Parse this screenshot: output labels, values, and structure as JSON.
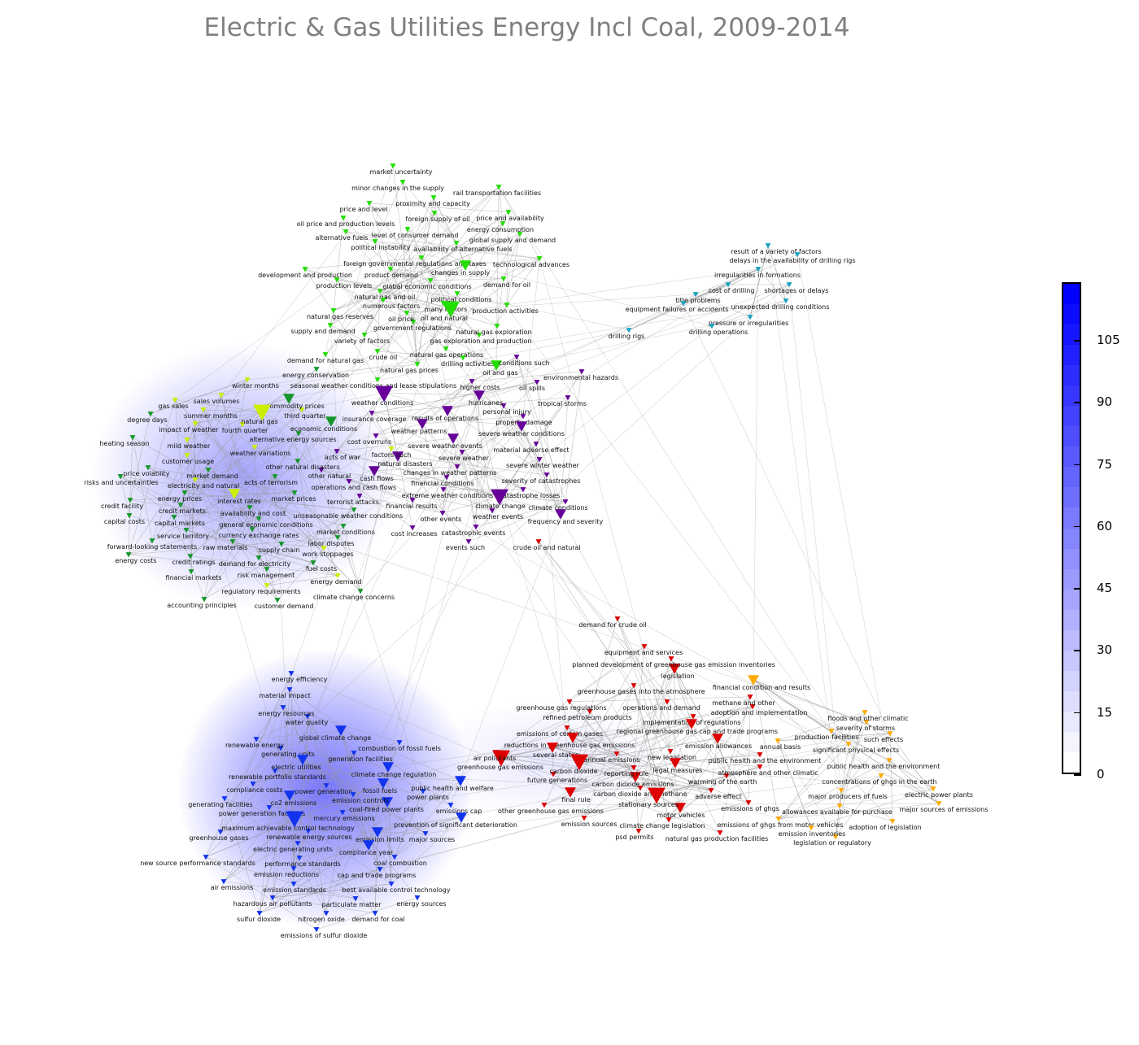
{
  "title": "Electric & Gas Utilities Energy Incl Coal, 2009-2014",
  "colorbar": {
    "ticks": [
      "0",
      "15",
      "30",
      "45",
      "60",
      "75",
      "90",
      "105"
    ],
    "tick_values": [
      0,
      15,
      30,
      45,
      60,
      75,
      90,
      105
    ],
    "range": [
      0,
      119
    ],
    "low_color": "#ffffff",
    "high_color": "#0000ff"
  },
  "clusters": [
    {
      "id": "oil",
      "color": "#22dd00",
      "nodes": [
        "market uncertainty",
        "minor changes in the supply",
        "proximity and capacity",
        "foreign supply of oil",
        "level of consumer demand",
        "price and level",
        "rail transportation facilities",
        "oil price and production levels",
        "availability of alternative fuels",
        "foreign governmental regulations and taxes",
        "energy consumption",
        "price and availability",
        "political instability",
        "global supply and demand",
        "global economic conditions",
        "product demand",
        "natural gas and oil",
        "technological advances",
        "alternative fuels",
        "development and production",
        "political conditions",
        "numerous factors",
        "changes in supply",
        "government regulations",
        "demand for oil",
        "production levels",
        "oil price",
        "production activities",
        "many factors",
        "natural gas reserves",
        "oil and natural",
        "variety of factors",
        "gas exploration and production",
        "crude oil",
        "supply and demand",
        "natural gas exploration",
        "natural gas operations",
        "drilling activities",
        "natural gas prices",
        "seasonal weather conditions and lease stipulations",
        "demand for natural gas",
        "oil and gas"
      ]
    },
    {
      "id": "drilling",
      "color": "#1aa3c2",
      "nodes": [
        "result of a variety of factors",
        "delays in the availability of drilling rigs",
        "irregularities in formations",
        "cost of drilling",
        "shortages or delays",
        "unexpected drilling conditions",
        "pressure or irregularities",
        "title problems",
        "drilling operations",
        "equipment failures or accidents",
        "drilling rigs"
      ]
    },
    {
      "id": "weather",
      "color": "#660099",
      "nodes": [
        "higher costs",
        "oil spills",
        "environmental hazards",
        "personal injury",
        "conditions such",
        "tropical storms",
        "weather conditions",
        "insurance coverage",
        "hurricanes",
        "cost overruns",
        "results of operations",
        "severe weather",
        "acts of war",
        "changes in weather patterns",
        "weather patterns",
        "property damage",
        "operations and cash flows",
        "severe weather events",
        "financial conditions",
        "severe weather conditions",
        "extreme weather conditions",
        "other natural",
        "material adverse effect",
        "financial results",
        "severe winter weather",
        "natural disasters",
        "severity of catastrophes",
        "other events",
        "cash flows",
        "catastrophe losses",
        "terrorist attacks",
        "catastrophic events",
        "cost increases",
        "weather events",
        "climate conditions",
        "events such",
        "climate change",
        "frequency and severity"
      ]
    },
    {
      "id": "markets",
      "color": "#14962a",
      "secondary_color": "#ccee00",
      "nodes": [
        "winter months",
        "sales volumes",
        "energy conservation",
        "third quarter",
        "summer months",
        "alternative energy sources",
        "gas sales",
        "fourth quarter",
        "commodity prices",
        "impact of weather",
        "natural gas",
        "mild weather",
        "weather variations",
        "economic conditions",
        "degree days",
        "customer usage",
        "other natural disasters",
        "heating season",
        "acts of terrorism",
        "factors such",
        "market demand",
        "electricity and natural",
        "energy prices",
        "market prices",
        "availability and cost",
        "general economic conditions",
        "unseasonable weather conditions",
        "price volatility",
        "market conditions",
        "currency exchange rates",
        "labor disputes",
        "supply chain",
        "credit markets",
        "capital markets",
        "raw materials",
        "service territory",
        "risks and uncertainties",
        "interest rates",
        "credit facility",
        "demand for electricity",
        "forward-looking statements",
        "work stoppages",
        "fuel costs",
        "capital costs",
        "risk management",
        "credit ratings",
        "energy costs",
        "regulatory requirements",
        "energy demand",
        "financial markets",
        "customer demand",
        "climate change concerns",
        "accounting principles"
      ]
    },
    {
      "id": "emissions",
      "color": "#1133ee",
      "nodes": [
        "energy efficiency",
        "material impact",
        "water quality",
        "energy resources",
        "generating units",
        "global climate change",
        "renewable energy",
        "renewable portfolio standards",
        "generation facilities",
        "electric utilities",
        "power generation",
        "compliance costs",
        "climate change regulation",
        "power generation facilities",
        "fossil fuels",
        "renewable energy sources",
        "power plants",
        "public health and welfare",
        "generating facilities",
        "combustion of fossil fuels",
        "co2 emissions",
        "emissions cap",
        "electric generating units",
        "coal-fired power plants",
        "performance standards",
        "emission controls",
        "prevention of significant deterioration",
        "greenhouse gases",
        "emission limits",
        "major sources",
        "maximum achievable control technology",
        "compliance year",
        "mercury emissions",
        "coal combustion",
        "emission reductions",
        "cap and trade programs",
        "emission standards",
        "best available control technology",
        "new source performance standards",
        "particulate matter",
        "hazardous air pollutants",
        "energy sources",
        "air emissions",
        "nitrogen oxide",
        "sulfur dioxide",
        "demand for coal",
        "emissions of sulfur dioxide"
      ]
    },
    {
      "id": "ghg",
      "color": "#dd0000",
      "nodes": [
        "crude oil and natural",
        "demand for crude oil",
        "equipment and services",
        "legislation",
        "greenhouse gases into the atmosphere",
        "operations and demand",
        "implementation of regulations",
        "planned development of greenhouse gas emission inventories",
        "adoption and implementation",
        "methane and other",
        "refined petroleum products",
        "new legislation",
        "regional greenhouse gas cap and trade programs",
        "emissions of certain gases",
        "reductions in greenhouse gas emissions",
        "emission allowances",
        "public health and the environment",
        "greenhouse gas regulations",
        "warming of the earth",
        "carbon dioxide and methane",
        "future generations",
        "atmosphere and other climatic",
        "annual emissions",
        "greenhouse gas emissions",
        "several states",
        "adverse effect",
        "carbon dioxide",
        "air pollutants",
        "legal measures",
        "other greenhouse gas emissions",
        "climate change legislation",
        "carbon dioxide emissions",
        "emissions of ghgs",
        "final rule",
        "reporting rule",
        "natural gas production facilities",
        "motor vehicles",
        "emission sources",
        "stationary sources",
        "psd permits"
      ]
    },
    {
      "id": "physical",
      "color": "#ffaa00",
      "nodes": [
        "financial condition and results",
        "production facilities",
        "severity of storms",
        "floods and other climatic",
        "significant physical effects",
        "public health and the environment",
        "concentrations of ghgs in the earth",
        "annual basis",
        "major producers of fuels",
        "such effects",
        "allowances available for purchase",
        "emissions of ghgs from motor vehicles",
        "electric power plants",
        "adoption of legislation",
        "legislation or regulatory",
        "emission inventories",
        "major sources of emissions"
      ]
    }
  ]
}
